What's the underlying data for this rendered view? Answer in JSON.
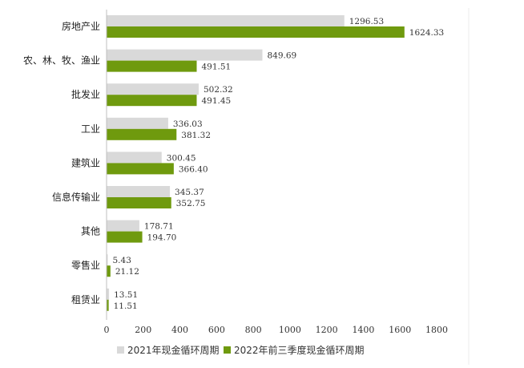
{
  "colors": {
    "series2021": "#d9d9d9",
    "series2022": "#6f9a0e",
    "grid": "#e6e6e6",
    "axis": "#bfbfbf"
  },
  "chart_data": {
    "type": "bar",
    "orientation": "horizontal",
    "categories": [
      "房地产业",
      "农、林、牧、渔业",
      "批发业",
      "工业",
      "建筑业",
      "信息传输业",
      "其他",
      "零售业",
      "租赁业"
    ],
    "series": [
      {
        "name": "2021年现金循环周期",
        "values": [
          1296.53,
          849.69,
          502.32,
          336.03,
          300.45,
          345.37,
          178.71,
          5.43,
          13.51
        ],
        "labels": [
          "1296.53",
          "849.69",
          "502.32",
          "336.03",
          "300.45",
          "345.37",
          "178.71",
          "5.43",
          "13.51"
        ]
      },
      {
        "name": "2022年前三季度现金循环周期",
        "values": [
          1624.33,
          491.51,
          491.45,
          381.32,
          366.4,
          352.75,
          194.7,
          21.12,
          11.51
        ],
        "labels": [
          "1624.33",
          "491.51",
          "491.45",
          "381.32",
          "366.40",
          "352.75",
          "194.70",
          "21.12",
          "11.51"
        ]
      }
    ],
    "xticks": [
      "0",
      "200",
      "400",
      "600",
      "800",
      "1000",
      "1200",
      "1400",
      "1600",
      "1800"
    ],
    "xlim": [
      0,
      1800
    ],
    "grid": false,
    "legend": "bottom"
  }
}
